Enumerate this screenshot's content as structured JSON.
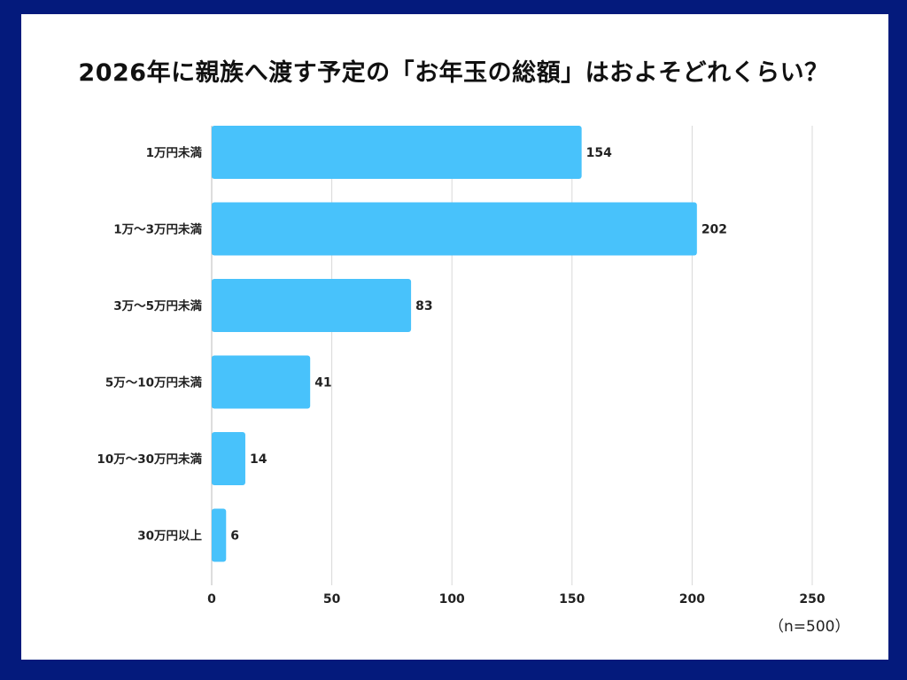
{
  "chart_data": {
    "type": "bar",
    "orientation": "horizontal",
    "title": "2026年に親族へ渡す予定の「お年玉の総額」はおよそどれくらい？",
    "categories": [
      "1万円未満",
      "1万〜3万円未満",
      "3万〜5万円未満",
      "5万〜10万円未満",
      "10万〜30万円未満",
      "30万円以上"
    ],
    "values": [
      154,
      202,
      83,
      41,
      14,
      6
    ],
    "xlim": [
      0,
      250
    ],
    "xticks": [
      0,
      50,
      100,
      150,
      200,
      250
    ],
    "grid": true,
    "bar_color": "#48c2fb",
    "frame_color": "#041a7c",
    "note": "（n=500）"
  }
}
